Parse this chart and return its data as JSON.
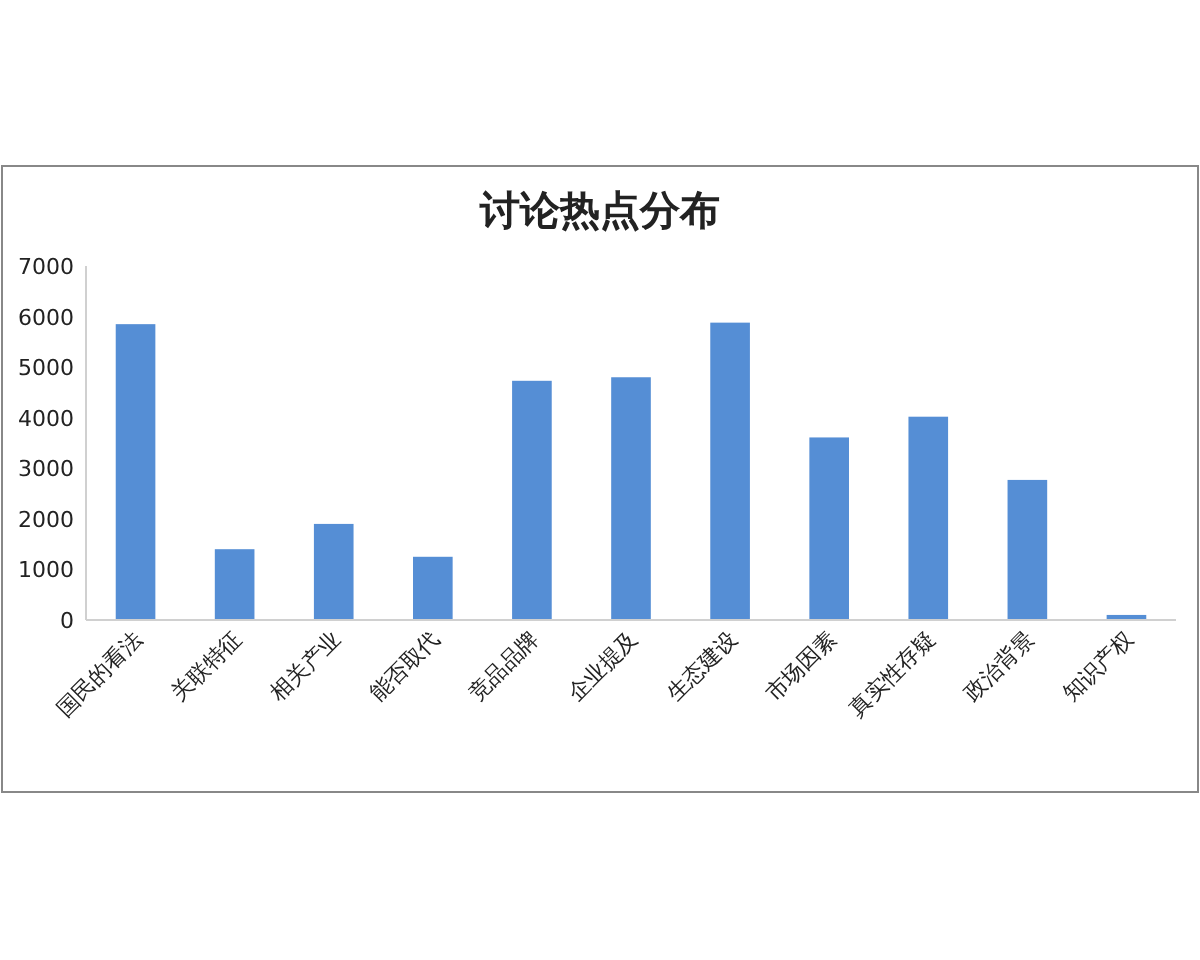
{
  "chart_data": {
    "type": "bar",
    "title": "讨论热点分布",
    "categories": [
      "国民的看法",
      "关联特征",
      "相关产业",
      "能否取代",
      "竞品品牌",
      "企业提及",
      "生态建设",
      "市场因素",
      "真实性存疑",
      "政治背景",
      "知识产权"
    ],
    "values": [
      5850,
      1400,
      1900,
      1250,
      4730,
      4800,
      5880,
      3610,
      4020,
      2770,
      100
    ],
    "color": "#558ed5",
    "ylim": [
      0,
      7000
    ],
    "yticks": [
      0,
      1000,
      2000,
      3000,
      4000,
      5000,
      6000,
      7000
    ],
    "grid": false
  }
}
